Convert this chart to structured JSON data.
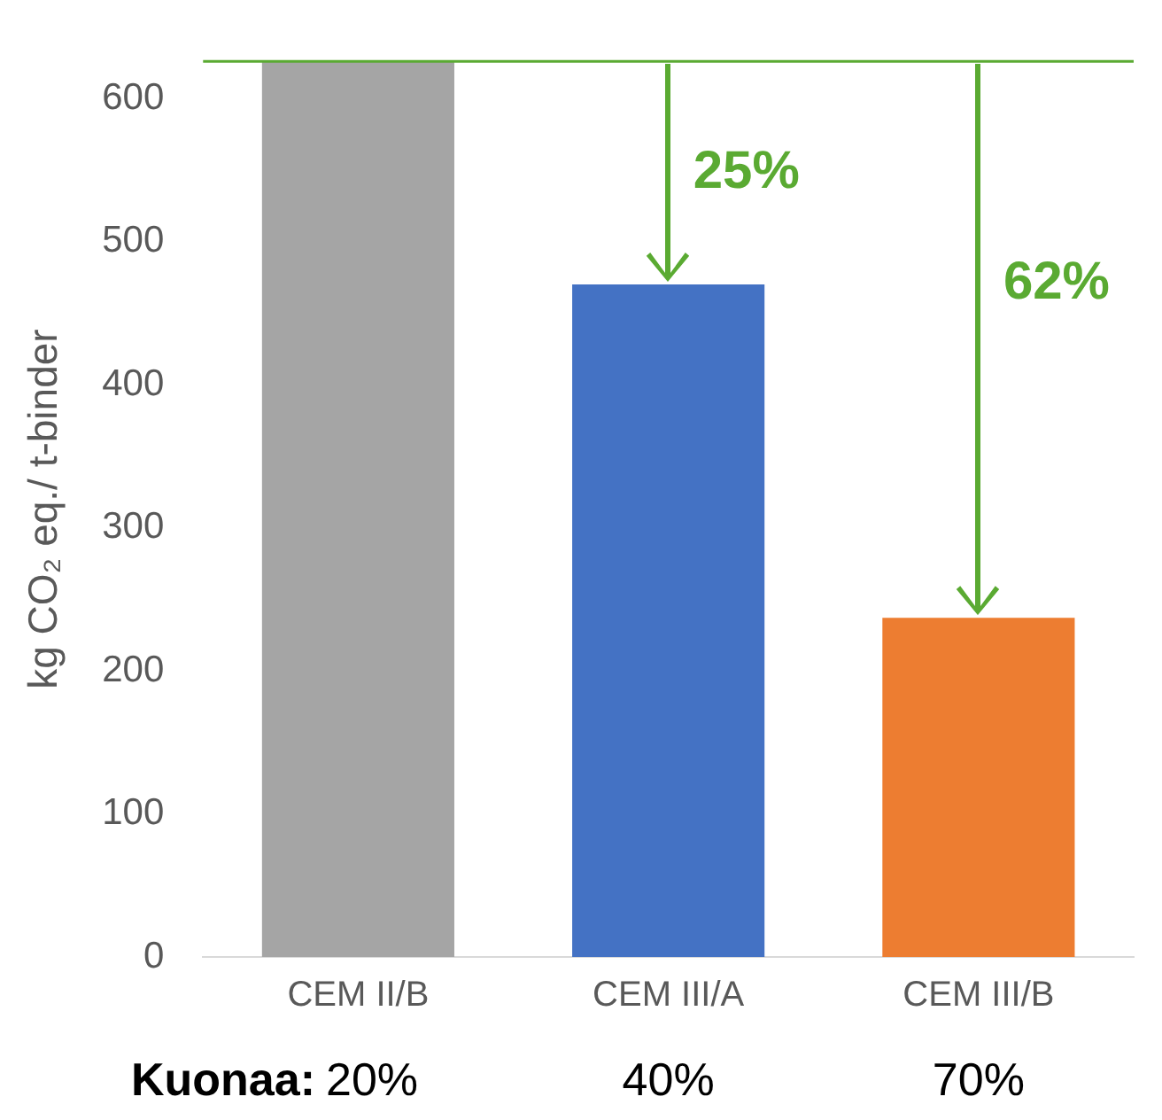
{
  "chart_data": {
    "type": "bar",
    "ylabel": "kg CO₂ eq./ t-binder",
    "categories": [
      "CEM II/B",
      "CEM III/A",
      "CEM III/B"
    ],
    "values": [
      626,
      470,
      237
    ],
    "colors": [
      "#a5a5a5",
      "#4472c4",
      "#ed7d31"
    ],
    "ylim": [
      0,
      626
    ],
    "yticks": [
      0,
      100,
      200,
      300,
      400,
      500,
      600
    ],
    "grid": false,
    "legend": false,
    "ref_lines": [
      {
        "axis": "y",
        "value": 626,
        "color": "#5aaa32"
      }
    ],
    "annotations": [
      "25%",
      "62%",
      "Kuonaa:",
      "20%",
      "40%",
      "70%"
    ]
  }
}
